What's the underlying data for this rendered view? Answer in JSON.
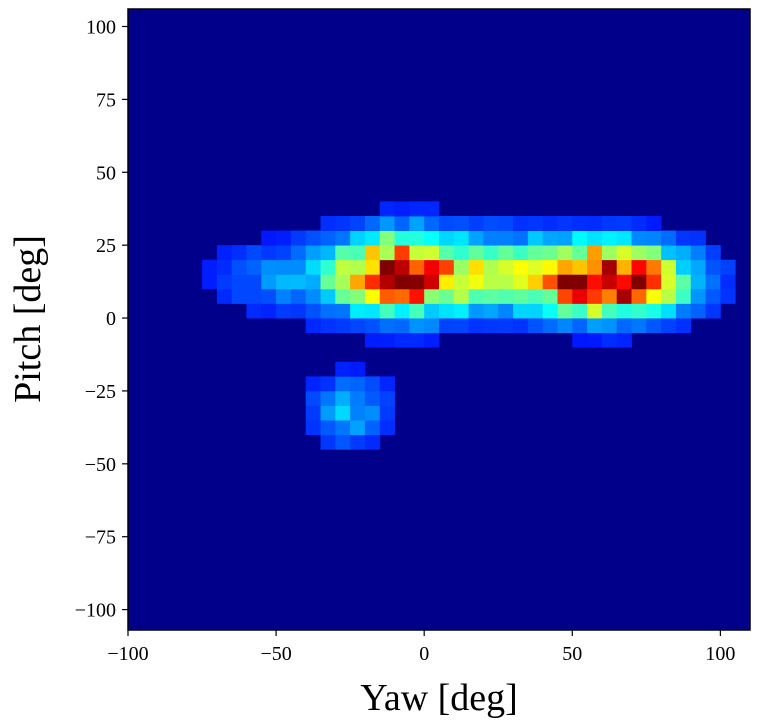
{
  "chart_data": {
    "type": "heatmap",
    "title": "",
    "xlabel": "Yaw [deg]",
    "ylabel": "Pitch [deg]",
    "xlim": [
      -100,
      110
    ],
    "ylim": [
      -107,
      106
    ],
    "xticks": [
      -100,
      -50,
      0,
      50,
      100
    ],
    "xtick_labels": [
      "−100",
      "−50",
      "0",
      "50",
      "100"
    ],
    "yticks": [
      100,
      75,
      50,
      25,
      0,
      -25,
      -50,
      -75,
      -100
    ],
    "ytick_labels": [
      "100",
      "75",
      "50",
      "25",
      "0",
      "−25",
      "−50",
      "−75",
      "−100"
    ],
    "colormap": "jet",
    "background_color": "#00008b",
    "bin_size_deg": 5,
    "max_density": 1.0,
    "grid": false,
    "legend": "none",
    "clusters": [
      {
        "center_yaw": -8,
        "center_pitch": 15,
        "spread_yaw": 15,
        "spread_pitch": 9,
        "peak": 0.9
      },
      {
        "center_yaw": 63,
        "center_pitch": 13,
        "spread_yaw": 17,
        "spread_pitch": 8,
        "peak": 1.0
      },
      {
        "center_yaw": 28,
        "center_pitch": 16,
        "spread_yaw": 20,
        "spread_pitch": 9,
        "peak": 0.3
      },
      {
        "center_yaw": -25,
        "center_pitch": -32,
        "spread_yaw": 9,
        "spread_pitch": 8,
        "peak": 0.2
      },
      {
        "center_yaw": -45,
        "center_pitch": 14,
        "spread_yaw": 18,
        "spread_pitch": 8,
        "peak": 0.14
      }
    ]
  }
}
